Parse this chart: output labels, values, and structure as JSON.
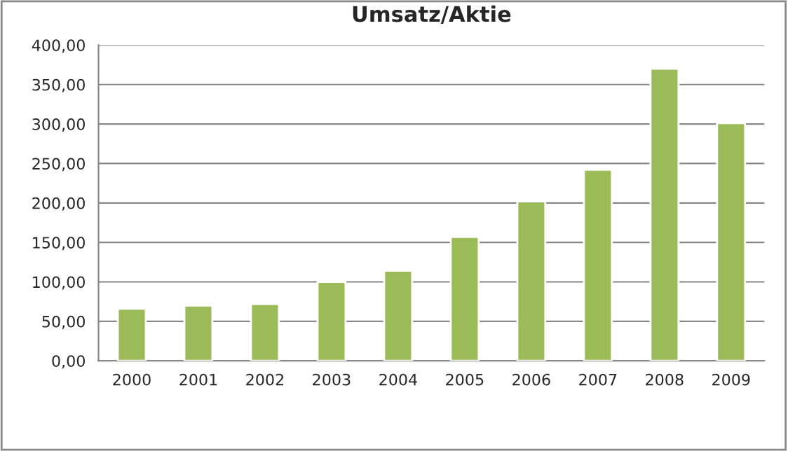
{
  "chart_data": {
    "type": "bar",
    "title": "Umsatz/Aktie",
    "categories": [
      "2000",
      "2001",
      "2002",
      "2003",
      "2004",
      "2005",
      "2006",
      "2007",
      "2008",
      "2009"
    ],
    "series": [
      {
        "color": "#9bbb59",
        "values": [
          66,
          70,
          72,
          100,
          114,
          157,
          202,
          242,
          370,
          301
        ]
      }
    ],
    "ylim": [
      0,
      400
    ],
    "yticks": [
      {
        "value": 0,
        "label": "0,00"
      },
      {
        "value": 50,
        "label": "50,00"
      },
      {
        "value": 100,
        "label": "100,00"
      },
      {
        "value": 150,
        "label": "150,00"
      },
      {
        "value": 200,
        "label": "200,00"
      },
      {
        "value": 250,
        "label": "250,00"
      },
      {
        "value": 300,
        "label": "300,00"
      },
      {
        "value": 350,
        "label": "350,00"
      },
      {
        "value": 400,
        "label": "400,00"
      }
    ],
    "grid": "y",
    "legend": false
  }
}
